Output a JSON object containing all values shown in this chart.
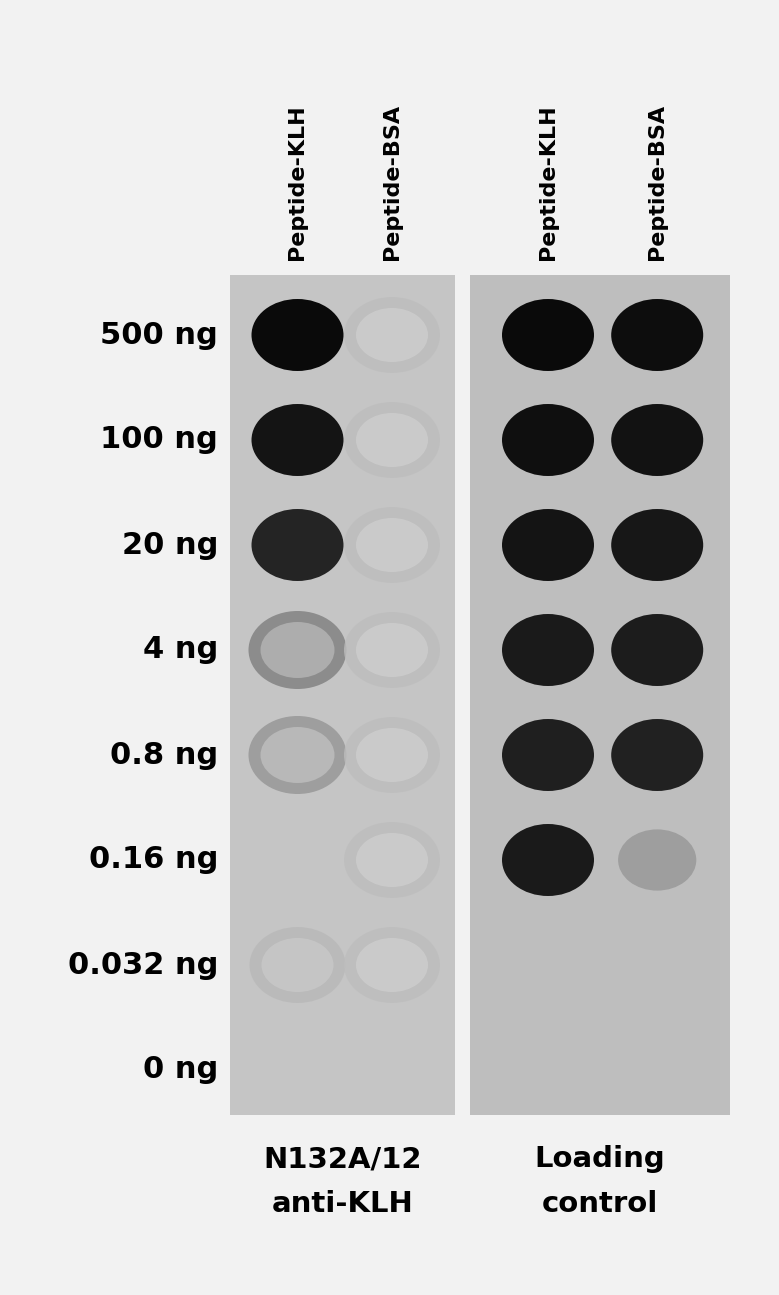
{
  "background_color": "#f0f0f0",
  "panel_bg_left": "#c8c8c8",
  "panel_bg_right": "#c0c0c0",
  "row_labels": [
    "500 ng",
    "100 ng",
    "20 ng",
    "4 ng",
    "0.8 ng",
    "0.16 ng",
    "0.032 ng",
    "0 ng"
  ],
  "col_headers": [
    "Peptide-KLH",
    "Peptide-BSA"
  ],
  "bottom_labels_left": [
    "N132A/12",
    "anti-KLH"
  ],
  "bottom_labels_right": [
    "Loading",
    "control"
  ],
  "left_klh": [
    {
      "type": "solid",
      "val": 0.04
    },
    {
      "type": "solid",
      "val": 0.08
    },
    {
      "type": "solid",
      "val": 0.14
    },
    {
      "type": "ring_faint",
      "outer": 0.55,
      "inner": 0.68
    },
    {
      "type": "ring_faint",
      "outer": 0.62,
      "inner": 0.72
    },
    {
      "type": "none"
    },
    {
      "type": "ring_very_faint",
      "outer": 0.72,
      "inner": 0.78
    },
    {
      "type": "none"
    }
  ],
  "left_bsa": [
    {
      "type": "ring_very_faint",
      "outer": 0.74,
      "inner": 0.8
    },
    {
      "type": "ring_very_faint",
      "outer": 0.74,
      "inner": 0.8
    },
    {
      "type": "ring_very_faint",
      "outer": 0.74,
      "inner": 0.8
    },
    {
      "type": "ring_very_faint",
      "outer": 0.74,
      "inner": 0.8
    },
    {
      "type": "ring_very_faint",
      "outer": 0.74,
      "inner": 0.8
    },
    {
      "type": "ring_very_faint",
      "outer": 0.74,
      "inner": 0.8
    },
    {
      "type": "ring_very_faint",
      "outer": 0.74,
      "inner": 0.8
    },
    {
      "type": "none"
    }
  ],
  "right_klh": [
    {
      "type": "solid",
      "val": 0.04
    },
    {
      "type": "solid",
      "val": 0.06
    },
    {
      "type": "solid",
      "val": 0.08
    },
    {
      "type": "solid",
      "val": 0.1
    },
    {
      "type": "solid",
      "val": 0.12
    },
    {
      "type": "solid",
      "val": 0.1
    },
    {
      "type": "none"
    },
    {
      "type": "none"
    }
  ],
  "right_bsa": [
    {
      "type": "solid",
      "val": 0.05
    },
    {
      "type": "solid",
      "val": 0.07
    },
    {
      "type": "solid",
      "val": 0.09
    },
    {
      "type": "solid",
      "val": 0.11
    },
    {
      "type": "solid",
      "val": 0.13
    },
    {
      "type": "light_dot",
      "val": 0.62
    },
    {
      "type": "none"
    },
    {
      "type": "none"
    }
  ],
  "fig_width": 7.79,
  "fig_height": 12.95,
  "dpi": 100
}
